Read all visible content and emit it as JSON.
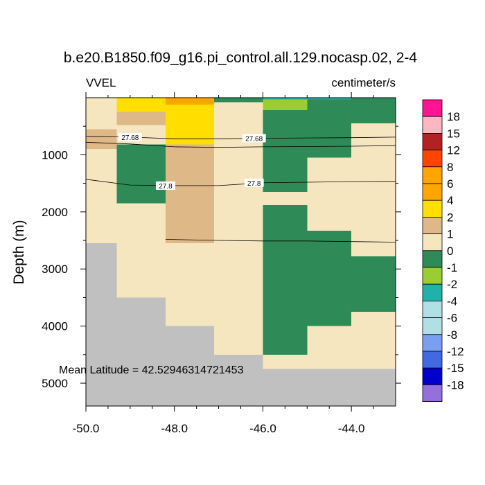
{
  "chart_data": {
    "type": "heatmap",
    "title": "b.e20.B1850.f09_g16.pi_control.all.129.nocasp.02, 2-4",
    "variable": "VVEL",
    "units": "centimeter/s",
    "ylabel": "Depth (m)",
    "xlabel": "",
    "xlim": [
      -50.0,
      -43.0
    ],
    "ylim": [
      0,
      5400
    ],
    "x_ticks": [
      -50.0,
      -48.0,
      -46.0,
      -44.0
    ],
    "x_tick_labels": [
      "-50.0",
      "-48.0",
      "-46.0",
      "-44.0"
    ],
    "y_ticks": [
      1000,
      2000,
      3000,
      4000,
      5000
    ],
    "y_tick_labels": [
      "1000",
      "2000",
      "3000",
      "4000",
      "5000"
    ],
    "annotation": "Mean Latitude = 42.52946314721453",
    "colorbar": {
      "labels": [
        "18",
        "15",
        "12",
        "8",
        "6",
        "4",
        "2",
        "1",
        "0",
        "-1",
        "-2",
        "-4",
        "-6",
        "-8",
        "-12",
        "-15",
        "-18"
      ],
      "colors": [
        "#ff1493",
        "#ffb6c1",
        "#b22222",
        "#ff4500",
        "#ffa500",
        "#ffa500",
        "#ffde00",
        "#deb887",
        "#f5e6c0",
        "#2e8b57",
        "#9acd32",
        "#20b2aa",
        "#b0e0e6",
        "#b0e0e6",
        "#7b9ff0",
        "#4169e1",
        "#0000cd",
        "#9370db"
      ]
    },
    "fill_colors": {
      "land": "#c0c0c0",
      "r0_1": "#f5e6c0",
      "r1_2": "#deb887",
      "r2_4": "#ffde00",
      "r4_6": "#ffa500",
      "rm1_0": "#2e8b57",
      "rm2_m1": "#9acd32",
      "rm4_m2": "#20b2aa"
    },
    "cells": [
      {
        "x": [
          -50.0,
          -49.3
        ],
        "y": [
          0,
          2550
        ],
        "c": "r0_1"
      },
      {
        "x": [
          -50.0,
          -49.3
        ],
        "y": [
          550,
          900
        ],
        "c": "r1_2"
      },
      {
        "x": [
          -50.0,
          -49.3
        ],
        "y": [
          2550,
          5400
        ],
        "c": "land"
      },
      {
        "x": [
          -49.3,
          -48.2
        ],
        "y": [
          0,
          3500
        ],
        "c": "r0_1"
      },
      {
        "x": [
          -49.3,
          -48.2
        ],
        "y": [
          0,
          250
        ],
        "c": "r2_4"
      },
      {
        "x": [
          -49.3,
          -48.2
        ],
        "y": [
          250,
          480
        ],
        "c": "r1_2"
      },
      {
        "x": [
          -49.3,
          -48.2
        ],
        "y": [
          820,
          1850
        ],
        "c": "rm1_0"
      },
      {
        "x": [
          -49.3,
          -48.2
        ],
        "y": [
          3500,
          5400
        ],
        "c": "land"
      },
      {
        "x": [
          -48.2,
          -47.1
        ],
        "y": [
          0,
          4000
        ],
        "c": "r0_1"
      },
      {
        "x": [
          -48.2,
          -47.1
        ],
        "y": [
          0,
          120
        ],
        "c": "r4_6"
      },
      {
        "x": [
          -48.2,
          -47.1
        ],
        "y": [
          120,
          820
        ],
        "c": "r2_4"
      },
      {
        "x": [
          -48.2,
          -47.1
        ],
        "y": [
          820,
          2550
        ],
        "c": "r1_2"
      },
      {
        "x": [
          -48.2,
          -47.1
        ],
        "y": [
          4000,
          5400
        ],
        "c": "land"
      },
      {
        "x": [
          -47.1,
          -46.0
        ],
        "y": [
          0,
          4500
        ],
        "c": "r0_1"
      },
      {
        "x": [
          -47.1,
          -46.0
        ],
        "y": [
          0,
          80
        ],
        "c": "rm1_0"
      },
      {
        "x": [
          -47.1,
          -46.0
        ],
        "y": [
          4500,
          5400
        ],
        "c": "land"
      },
      {
        "x": [
          -46.0,
          -45.0
        ],
        "y": [
          0,
          4750
        ],
        "c": "r0_1"
      },
      {
        "x": [
          -46.0,
          -45.0
        ],
        "y": [
          0,
          30
        ],
        "c": "rm4_m2"
      },
      {
        "x": [
          -46.0,
          -45.0
        ],
        "y": [
          30,
          220
        ],
        "c": "rm2_m1"
      },
      {
        "x": [
          -46.0,
          -45.0
        ],
        "y": [
          220,
          1650
        ],
        "c": "rm1_0"
      },
      {
        "x": [
          -46.0,
          -45.0
        ],
        "y": [
          1880,
          4500
        ],
        "c": "rm1_0"
      },
      {
        "x": [
          -46.0,
          -45.0
        ],
        "y": [
          4750,
          5400
        ],
        "c": "land"
      },
      {
        "x": [
          -45.0,
          -44.0
        ],
        "y": [
          0,
          4750
        ],
        "c": "r0_1"
      },
      {
        "x": [
          -45.0,
          -44.0
        ],
        "y": [
          0,
          30
        ],
        "c": "rm4_m2"
      },
      {
        "x": [
          -45.0,
          -44.0
        ],
        "y": [
          30,
          1050
        ],
        "c": "rm1_0"
      },
      {
        "x": [
          -45.0,
          -44.0
        ],
        "y": [
          2330,
          4000
        ],
        "c": "rm1_0"
      },
      {
        "x": [
          -45.0,
          -44.0
        ],
        "y": [
          4750,
          5400
        ],
        "c": "land"
      },
      {
        "x": [
          -44.0,
          -43.0
        ],
        "y": [
          0,
          4750
        ],
        "c": "r0_1"
      },
      {
        "x": [
          -44.0,
          -43.0
        ],
        "y": [
          0,
          450
        ],
        "c": "rm1_0"
      },
      {
        "x": [
          -44.0,
          -43.0
        ],
        "y": [
          2780,
          3750
        ],
        "c": "rm1_0"
      },
      {
        "x": [
          -44.0,
          -43.0
        ],
        "y": [
          4750,
          5400
        ],
        "c": "land"
      }
    ],
    "contours": [
      {
        "level": "27.68",
        "points": [
          [
            -50.0,
            680
          ],
          [
            -49.0,
            690
          ],
          [
            -48.0,
            720
          ],
          [
            -47.0,
            720
          ],
          [
            -46.0,
            710
          ],
          [
            -45.0,
            705
          ],
          [
            -44.0,
            700
          ],
          [
            -43.0,
            690
          ]
        ],
        "label_at": [
          [
            -49.0,
            690
          ],
          [
            -46.2,
            710
          ]
        ]
      },
      {
        "level": "",
        "points": [
          [
            -50.0,
            780
          ],
          [
            -49.0,
            810
          ],
          [
            -48.0,
            860
          ],
          [
            -47.0,
            870
          ],
          [
            -46.0,
            860
          ],
          [
            -45.0,
            855
          ],
          [
            -44.0,
            850
          ],
          [
            -43.0,
            840
          ]
        ],
        "label_at": []
      },
      {
        "level": "27.8",
        "points": [
          [
            -50.0,
            1430
          ],
          [
            -49.0,
            1530
          ],
          [
            -48.0,
            1540
          ],
          [
            -47.0,
            1540
          ],
          [
            -46.0,
            1490
          ],
          [
            -45.0,
            1480
          ],
          [
            -44.0,
            1470
          ],
          [
            -43.0,
            1465
          ]
        ],
        "label_at": [
          [
            -48.2,
            1540
          ],
          [
            -46.2,
            1490
          ]
        ]
      },
      {
        "level": "",
        "points": [
          [
            -48.2,
            2480
          ],
          [
            -47.0,
            2500
          ],
          [
            -46.0,
            2510
          ],
          [
            -45.0,
            2510
          ],
          [
            -44.0,
            2520
          ],
          [
            -43.0,
            2530
          ]
        ],
        "label_at": []
      }
    ]
  }
}
